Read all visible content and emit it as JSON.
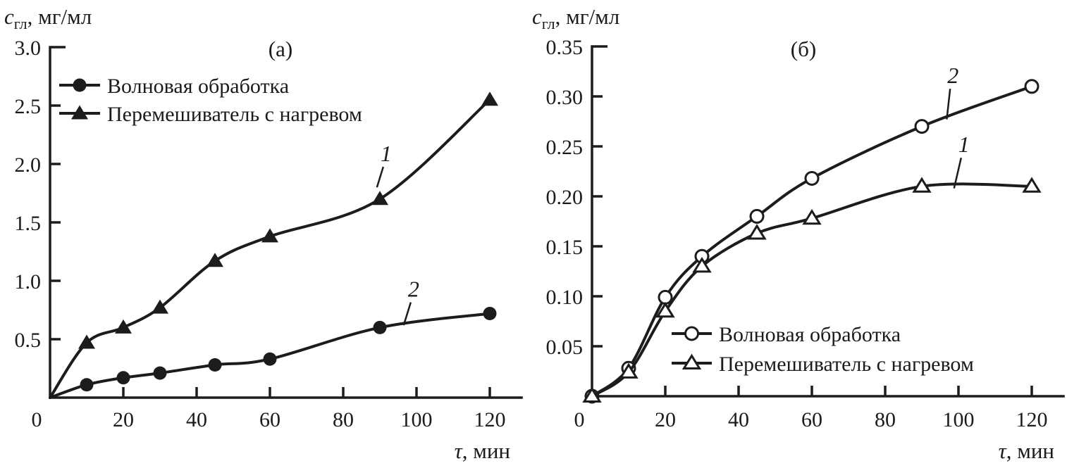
{
  "figure": {
    "background": "#ffffff",
    "ink_color": "#1c1c1c"
  },
  "chart_data": [
    {
      "type": "line",
      "panel_label": "(а)",
      "ylabel": {
        "symbol": "c",
        "subscript": "гл",
        "units": ", мг/мл"
      },
      "xlabel": {
        "symbol": "τ",
        "units": ", мин"
      },
      "xlim": [
        0,
        129
      ],
      "ylim": [
        0,
        3.0
      ],
      "xticks": [
        0,
        20,
        40,
        60,
        80,
        100,
        120
      ],
      "yticks": [
        0.5,
        1.0,
        1.5,
        2.0,
        2.5,
        3.0
      ],
      "ytick_decimals": 1,
      "grid": false,
      "legend_position": "top-left-inside",
      "legend": [
        {
          "marker": "filled-circle",
          "label": "Волновая обработка"
        },
        {
          "marker": "filled-triangle",
          "label": "Перемешиватель с нагревом"
        }
      ],
      "series": [
        {
          "id": "wave-treatment",
          "name": "Волновая обработка",
          "marker": "filled-circle",
          "curve_number": "2",
          "marker_skip_first": true,
          "x": [
            0,
            10,
            20,
            30,
            45,
            60,
            90,
            120
          ],
          "y": [
            0,
            0.11,
            0.17,
            0.21,
            0.28,
            0.33,
            0.6,
            0.72
          ]
        },
        {
          "id": "stirrer-heating",
          "name": "Перемешиватель с нагревом",
          "marker": "filled-triangle",
          "curve_number": "1",
          "marker_skip_first": true,
          "x": [
            0,
            10,
            20,
            30,
            45,
            60,
            90,
            120
          ],
          "y": [
            0,
            0.47,
            0.6,
            0.77,
            1.17,
            1.38,
            1.7,
            2.55
          ]
        }
      ],
      "curve_labels": [
        {
          "text": "1",
          "series": "stirrer-heating",
          "x": 91.7,
          "y": 2.09,
          "tip_x": 89.2,
          "tip_y": 1.8
        },
        {
          "text": "2",
          "series": "wave-treatment",
          "x": 99.2,
          "y": 0.93,
          "tip_x": 96.5,
          "tip_y": 0.62
        }
      ]
    },
    {
      "type": "line",
      "panel_label": "(б)",
      "ylabel": {
        "symbol": "c",
        "subscript": "гл",
        "units": ", мг/мл"
      },
      "xlabel": {
        "symbol": "τ",
        "units": ", мин"
      },
      "xlim": [
        0,
        129
      ],
      "ylim": [
        0,
        0.35
      ],
      "xticks": [
        0,
        20,
        40,
        60,
        80,
        100,
        120
      ],
      "yticks": [
        0.05,
        0.1,
        0.15,
        0.2,
        0.25,
        0.3,
        0.35
      ],
      "ytick_decimals": 2,
      "grid": false,
      "legend_position": "bottom-right-inside",
      "legend": [
        {
          "marker": "open-circle",
          "label": "Волновая обработка"
        },
        {
          "marker": "open-triangle",
          "label": "Перемешиватель с нагревом"
        }
      ],
      "series": [
        {
          "id": "wave-treatment",
          "name": "Волновая обработка",
          "marker": "open-circle",
          "curve_number": "2",
          "marker_skip_first": false,
          "x": [
            0,
            10,
            20,
            30,
            45,
            60,
            90,
            120
          ],
          "y": [
            0,
            0.028,
            0.099,
            0.14,
            0.18,
            0.218,
            0.27,
            0.31
          ]
        },
        {
          "id": "stirrer-heating",
          "name": "Перемешиватель с нагревом",
          "marker": "open-triangle",
          "curve_number": "1",
          "marker_skip_first": false,
          "x": [
            0,
            10,
            20,
            30,
            45,
            60,
            90,
            120
          ],
          "y": [
            0,
            0.024,
            0.085,
            0.13,
            0.163,
            0.178,
            0.21,
            0.21
          ]
        }
      ],
      "curve_labels": [
        {
          "text": "2",
          "series": "wave-treatment",
          "x": 98.5,
          "y": 0.321,
          "tip_x": 96.8,
          "tip_y": 0.277
        },
        {
          "text": "1",
          "series": "stirrer-heating",
          "x": 101.5,
          "y": 0.252,
          "tip_x": 98.8,
          "tip_y": 0.208
        }
      ]
    }
  ]
}
